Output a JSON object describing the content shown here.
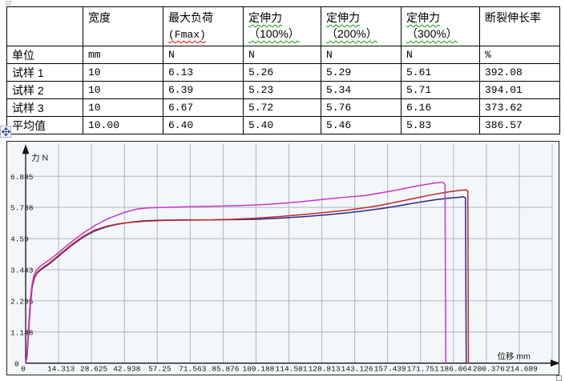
{
  "table": {
    "header": {
      "c1": {
        "l1": "宽度",
        "l2": ""
      },
      "c2": {
        "l1": "最大负荷",
        "l2": "(Fmax)"
      },
      "c3": {
        "l1": "定伸力",
        "l2": "（100%）"
      },
      "c4": {
        "l1": "定伸力",
        "l2": "（200%）"
      },
      "c5": {
        "l1": "定伸力",
        "l2": "（300%）"
      },
      "c6": {
        "l1": "断裂伸长率",
        "l2": ""
      }
    },
    "rows": [
      {
        "label": "单位",
        "values": [
          "mm",
          "N",
          "N",
          "N",
          "N",
          "%"
        ]
      },
      {
        "label": "试样 1",
        "values": [
          "10",
          "6.13",
          "5.26",
          "5.29",
          "5.61",
          "392.08"
        ]
      },
      {
        "label": "试样 2",
        "values": [
          "10",
          "6.39",
          "5.23",
          "5.34",
          "5.71",
          "394.01"
        ]
      },
      {
        "label": "试样 3",
        "values": [
          "10",
          "6.67",
          "5.72",
          "5.76",
          "6.16",
          "373.62"
        ]
      },
      {
        "label": "平均值",
        "values": [
          "10.00",
          "6.40",
          "5.40",
          "5.46",
          "5.83",
          "386.57"
        ]
      }
    ]
  },
  "chart_data": {
    "type": "line",
    "title": "",
    "xlabel": "位移 mm",
    "ylabel": "力 N",
    "xlim": [
      0,
      231
    ],
    "ylim": [
      0,
      8.1
    ],
    "grid": true,
    "legend": "none",
    "bg_color": "#f3f7f9",
    "grid_color": "#aeb6be",
    "axis_color": "#111111",
    "x_tick_step": 14.3125,
    "x_ticks": [
      "0",
      "14.313",
      "28.625",
      "42.938",
      "57.25",
      "71.563",
      "85.876",
      "100.188",
      "114.501",
      "128.813",
      "143.126",
      "157.439",
      "171.751",
      "186.064",
      "200.376",
      "214.689"
    ],
    "y_ticks": [
      "1.148",
      "2.295",
      "3.443",
      "4.59",
      "5.738",
      "6.885"
    ],
    "y_zero_label": "0",
    "series": [
      {
        "name": "试样 1",
        "color": "#28288c",
        "points": [
          [
            0,
            0
          ],
          [
            0.6,
            0.25
          ],
          [
            1.2,
            1.05
          ],
          [
            2,
            2.1
          ],
          [
            2.8,
            2.78
          ],
          [
            3.8,
            3.14
          ],
          [
            5,
            3.32
          ],
          [
            7,
            3.47
          ],
          [
            9.5,
            3.61
          ],
          [
            12.5,
            3.81
          ],
          [
            16,
            4.06
          ],
          [
            20,
            4.34
          ],
          [
            25,
            4.64
          ],
          [
            30,
            4.87
          ],
          [
            35,
            5.02
          ],
          [
            40,
            5.12
          ],
          [
            46,
            5.2
          ],
          [
            52,
            5.25
          ],
          [
            60,
            5.27
          ],
          [
            70,
            5.28
          ],
          [
            80,
            5.28
          ],
          [
            90,
            5.29
          ],
          [
            100,
            5.3
          ],
          [
            110,
            5.34
          ],
          [
            120,
            5.39
          ],
          [
            130,
            5.46
          ],
          [
            140,
            5.54
          ],
          [
            147,
            5.61
          ],
          [
            155,
            5.7
          ],
          [
            163,
            5.81
          ],
          [
            171,
            5.93
          ],
          [
            178,
            6.02
          ],
          [
            184,
            6.08
          ],
          [
            188,
            6.11
          ],
          [
            190.5,
            6.13
          ],
          [
            191.3,
            6.09
          ],
          [
            191.6,
            0.02
          ]
        ]
      },
      {
        "name": "试样 2",
        "color": "#c02828",
        "points": [
          [
            0,
            0
          ],
          [
            0.6,
            0.25
          ],
          [
            1.2,
            1.05
          ],
          [
            2,
            2.12
          ],
          [
            2.8,
            2.8
          ],
          [
            3.8,
            3.16
          ],
          [
            5,
            3.34
          ],
          [
            7,
            3.5
          ],
          [
            9.5,
            3.64
          ],
          [
            12.5,
            3.84
          ],
          [
            16,
            4.09
          ],
          [
            20,
            4.37
          ],
          [
            25,
            4.67
          ],
          [
            30,
            4.9
          ],
          [
            35,
            5.04
          ],
          [
            40,
            5.13
          ],
          [
            46,
            5.19
          ],
          [
            52,
            5.23
          ],
          [
            60,
            5.26
          ],
          [
            70,
            5.27
          ],
          [
            80,
            5.28
          ],
          [
            90,
            5.3
          ],
          [
            100,
            5.34
          ],
          [
            110,
            5.4
          ],
          [
            120,
            5.47
          ],
          [
            130,
            5.55
          ],
          [
            140,
            5.64
          ],
          [
            147,
            5.72
          ],
          [
            155,
            5.83
          ],
          [
            162,
            5.95
          ],
          [
            170,
            6.09
          ],
          [
            177,
            6.21
          ],
          [
            183,
            6.3
          ],
          [
            188,
            6.36
          ],
          [
            191.5,
            6.39
          ],
          [
            192.3,
            6.34
          ],
          [
            192.6,
            0.02
          ]
        ]
      },
      {
        "name": "试样 3",
        "color": "#cc33cc",
        "points": [
          [
            0,
            0
          ],
          [
            0.5,
            0.3
          ],
          [
            1.1,
            1.15
          ],
          [
            1.9,
            2.2
          ],
          [
            2.7,
            2.87
          ],
          [
            3.6,
            3.24
          ],
          [
            4.8,
            3.44
          ],
          [
            6.5,
            3.58
          ],
          [
            8.5,
            3.7
          ],
          [
            11,
            3.85
          ],
          [
            14,
            4.05
          ],
          [
            17.5,
            4.3
          ],
          [
            21.5,
            4.57
          ],
          [
            26,
            4.85
          ],
          [
            30.5,
            5.09
          ],
          [
            35,
            5.29
          ],
          [
            39.5,
            5.45
          ],
          [
            44,
            5.58
          ],
          [
            48.5,
            5.68
          ],
          [
            53,
            5.72
          ],
          [
            60,
            5.74
          ],
          [
            70,
            5.76
          ],
          [
            80,
            5.78
          ],
          [
            90,
            5.8
          ],
          [
            100,
            5.83
          ],
          [
            110,
            5.88
          ],
          [
            120,
            5.95
          ],
          [
            130,
            6.04
          ],
          [
            140,
            6.12
          ],
          [
            147,
            6.17
          ],
          [
            155,
            6.28
          ],
          [
            162,
            6.39
          ],
          [
            169,
            6.51
          ],
          [
            175,
            6.6
          ],
          [
            179,
            6.65
          ],
          [
            181.5,
            6.67
          ],
          [
            182.4,
            6.57
          ],
          [
            182.7,
            0.02
          ]
        ]
      }
    ]
  }
}
